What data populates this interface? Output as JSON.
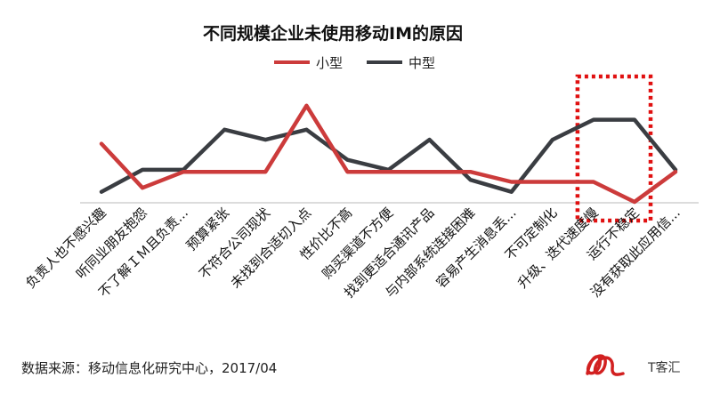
{
  "chart_data": {
    "type": "line",
    "title": "不同规模企业未使用移动IM的原因",
    "categories": [
      "负责人也不感兴趣",
      "听同业朋友抱怨",
      "不了解ＩＭ且负责...",
      "预算紧张",
      "不符合公司现状",
      "未找到合适切入点",
      "性价比不高",
      "购买渠道不方便",
      "找到更适合通讯产品",
      "与内部系统连接困难",
      "容易产生消息丢...",
      "不可定制化",
      "升级、迭代速度慢",
      "运行不稳定",
      "没有获取此应用信..."
    ],
    "series": [
      {
        "name": "小型",
        "color": "#cc3b3b",
        "values": [
          5.8,
          1.4,
          3.0,
          3.0,
          3.0,
          9.6,
          3.0,
          3.0,
          3.0,
          3.0,
          2.0,
          2.0,
          2.0,
          0.0,
          3.0
        ]
      },
      {
        "name": "中型",
        "color": "#3a3d42",
        "values": [
          1.0,
          3.2,
          3.2,
          7.2,
          6.2,
          7.2,
          4.2,
          3.2,
          6.2,
          2.2,
          1.0,
          6.2,
          8.2,
          8.2,
          3.2
        ]
      }
    ],
    "ylim": [
      0,
      11
    ],
    "grid": false,
    "legend": "top-center",
    "highlight": {
      "from_index": 12,
      "to_index": 13,
      "color": "#e01010",
      "style": "dotted"
    }
  },
  "footer": {
    "source": "数据来源：移动信息化研究中心，2017/04",
    "brand": "T客汇"
  }
}
